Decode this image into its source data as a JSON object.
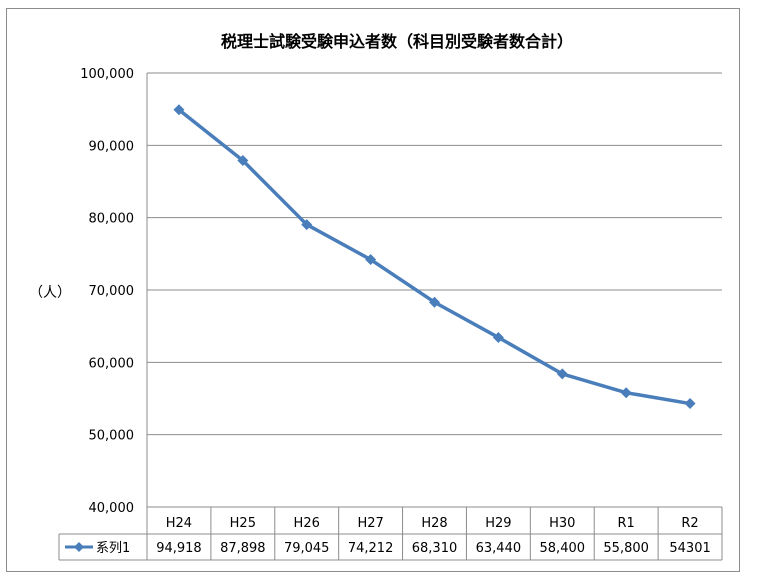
{
  "chart_data": {
    "type": "line",
    "title": "税理士試験受験申込者数（科目別受験者数合計）",
    "ylabel": "（人）",
    "ylim": [
      40000,
      100000
    ],
    "yticks": [
      40000,
      50000,
      60000,
      70000,
      80000,
      90000,
      100000
    ],
    "ytick_labels": [
      "40,000",
      "50,000",
      "60,000",
      "70,000",
      "80,000",
      "90,000",
      "100,000"
    ],
    "categories": [
      "H24",
      "H25",
      "H26",
      "H27",
      "H28",
      "H29",
      "H30",
      "R1",
      "R2"
    ],
    "grid": true,
    "legend": "data-table",
    "series": [
      {
        "name": "系列1",
        "color": "#4a7ebb",
        "marker": "diamond",
        "values": [
          94918,
          87898,
          79045,
          74212,
          68310,
          63440,
          58400,
          55800,
          54301
        ],
        "value_labels": [
          "94,918",
          "87,898",
          "79,045",
          "74,212",
          "68,310",
          "63,440",
          "58,400",
          "55,800",
          "54301"
        ]
      }
    ]
  }
}
